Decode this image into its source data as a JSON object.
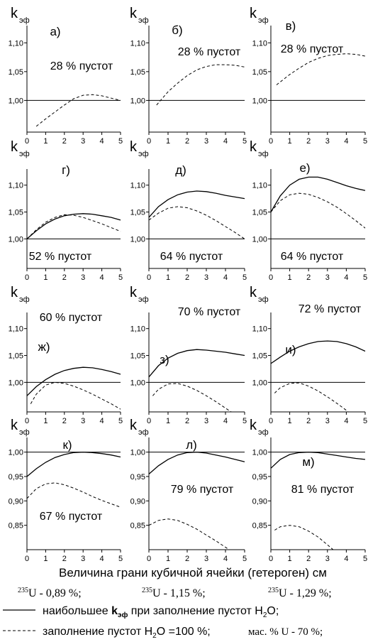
{
  "chart_data": [
    {
      "type": "line",
      "panel_label": "а)",
      "annotation": "28 % пустот",
      "y_label": "k",
      "y_label_sub": "эф",
      "xlim": [
        0,
        5
      ],
      "ylim": [
        0.945,
        1.13
      ],
      "xticks": [
        0,
        1,
        2,
        3,
        4,
        5
      ],
      "yticks": [
        {
          "value": 1.0,
          "label": "1,00"
        },
        {
          "value": 1.05,
          "label": "1,05"
        },
        {
          "value": 1.1,
          "label": "1,10"
        }
      ],
      "reference_line": 1,
      "series": [
        {
          "style": "dashed",
          "color": "#000000",
          "x": [
            0.5,
            1,
            1.5,
            2,
            2.5,
            3,
            3.5,
            4,
            4.5,
            5
          ],
          "values": [
            0.955,
            0.968,
            0.98,
            0.992,
            1.003,
            1.009,
            1.01,
            1.008,
            1.004,
            1.0
          ]
        }
      ]
    },
    {
      "type": "line",
      "panel_label": "б)",
      "annotation": "28 % пустот",
      "y_label": "k",
      "y_label_sub": "эф",
      "xlim": [
        0,
        5
      ],
      "ylim": [
        0.945,
        1.13
      ],
      "xticks": [
        0,
        1,
        2,
        3,
        4,
        5
      ],
      "yticks": [
        {
          "value": 1.0,
          "label": "1,00"
        },
        {
          "value": 1.05,
          "label": "1,05"
        },
        {
          "value": 1.1,
          "label": "1,10"
        }
      ],
      "reference_line": 1,
      "series": [
        {
          "style": "dashed",
          "color": "#000000",
          "x": [
            0.4,
            1,
            1.5,
            2,
            2.5,
            3,
            3.5,
            4,
            4.5,
            5
          ],
          "values": [
            0.992,
            1.015,
            1.03,
            1.043,
            1.053,
            1.059,
            1.062,
            1.062,
            1.061,
            1.058
          ]
        }
      ]
    },
    {
      "type": "line",
      "panel_label": "в)",
      "annotation": "28 % пустот",
      "y_label": "k",
      "y_label_sub": "эф",
      "xlim": [
        0,
        5
      ],
      "ylim": [
        0.945,
        1.13
      ],
      "xticks": [
        0,
        1,
        2,
        3,
        4,
        5
      ],
      "yticks": [
        {
          "value": 1.0,
          "label": "1,00"
        },
        {
          "value": 1.05,
          "label": "1,05"
        },
        {
          "value": 1.1,
          "label": "1,10"
        }
      ],
      "reference_line": 1,
      "series": [
        {
          "style": "dashed",
          "color": "#000000",
          "x": [
            0.3,
            1,
            1.5,
            2,
            2.5,
            3,
            3.5,
            4,
            4.5,
            5
          ],
          "values": [
            1.027,
            1.045,
            1.056,
            1.066,
            1.073,
            1.078,
            1.08,
            1.081,
            1.08,
            1.077
          ]
        }
      ]
    },
    {
      "type": "line",
      "panel_label": "г)",
      "annotation": "52 % пустот",
      "y_label": "k",
      "y_label_sub": "эф",
      "xlim": [
        0,
        5
      ],
      "ylim": [
        0.945,
        1.13
      ],
      "xticks": [
        0,
        1,
        2,
        3,
        4,
        5
      ],
      "yticks": [
        {
          "value": 1.0,
          "label": "1,00"
        },
        {
          "value": 1.05,
          "label": "1,05"
        },
        {
          "value": 1.1,
          "label": "1,10"
        }
      ],
      "reference_line": 1,
      "series": [
        {
          "style": "solid",
          "color": "#000000",
          "x": [
            0,
            0.5,
            1,
            1.5,
            2,
            2.5,
            3,
            3.5,
            4,
            4.5,
            5
          ],
          "values": [
            1.0,
            1.015,
            1.028,
            1.037,
            1.043,
            1.046,
            1.047,
            1.046,
            1.043,
            1.04,
            1.035
          ]
        },
        {
          "style": "dashed",
          "color": "#000000",
          "x": [
            0,
            0.5,
            1,
            1.5,
            2,
            2.5,
            3,
            3.5,
            4,
            4.5,
            5
          ],
          "values": [
            1.0,
            1.017,
            1.031,
            1.04,
            1.045,
            1.044,
            1.04,
            1.034,
            1.028,
            1.021,
            1.014
          ]
        }
      ]
    },
    {
      "type": "line",
      "panel_label": "д)",
      "annotation": "64 % пустот",
      "y_label": "k",
      "y_label_sub": "эф",
      "xlim": [
        0,
        5
      ],
      "ylim": [
        0.945,
        1.13
      ],
      "xticks": [
        0,
        1,
        2,
        3,
        4,
        5
      ],
      "yticks": [
        {
          "value": 1.0,
          "label": "1,00"
        },
        {
          "value": 1.05,
          "label": "1,05"
        },
        {
          "value": 1.1,
          "label": "1,10"
        }
      ],
      "reference_line": 1,
      "series": [
        {
          "style": "solid",
          "color": "#000000",
          "x": [
            0,
            0.5,
            1,
            1.5,
            2,
            2.5,
            3,
            3.5,
            4,
            4.5,
            5
          ],
          "values": [
            1.04,
            1.06,
            1.073,
            1.082,
            1.087,
            1.089,
            1.088,
            1.085,
            1.081,
            1.078,
            1.075
          ]
        },
        {
          "style": "dashed",
          "color": "#000000",
          "x": [
            0,
            0.5,
            1,
            1.5,
            2,
            2.5,
            3,
            3.5,
            4,
            4.5,
            5
          ],
          "values": [
            1.035,
            1.048,
            1.057,
            1.06,
            1.058,
            1.052,
            1.044,
            1.034,
            1.023,
            1.012,
            1.0
          ]
        }
      ]
    },
    {
      "type": "line",
      "panel_label": "е)",
      "annotation": "64 % пустот",
      "y_label": "k",
      "y_label_sub": "эф",
      "xlim": [
        0,
        5
      ],
      "ylim": [
        0.945,
        1.13
      ],
      "xticks": [
        0,
        1,
        2,
        3,
        4,
        5
      ],
      "yticks": [
        {
          "value": 1.0,
          "label": "1,00"
        },
        {
          "value": 1.05,
          "label": "1,05"
        },
        {
          "value": 1.1,
          "label": "1,10"
        }
      ],
      "reference_line": 1,
      "series": [
        {
          "style": "solid",
          "color": "#000000",
          "x": [
            0,
            0.5,
            1,
            1.5,
            2,
            2.5,
            3,
            3.5,
            4,
            4.5,
            5
          ],
          "values": [
            1.05,
            1.08,
            1.1,
            1.111,
            1.115,
            1.115,
            1.111,
            1.105,
            1.099,
            1.094,
            1.09
          ]
        },
        {
          "style": "dashed",
          "color": "#000000",
          "x": [
            0,
            0.5,
            1,
            1.5,
            2,
            2.5,
            3,
            3.5,
            4,
            4.5,
            5
          ],
          "values": [
            1.05,
            1.071,
            1.082,
            1.085,
            1.083,
            1.077,
            1.069,
            1.059,
            1.047,
            1.034,
            1.02
          ]
        }
      ]
    },
    {
      "type": "line",
      "panel_label": "ж)",
      "annotation": "60 % пустот",
      "y_label": "k",
      "y_label_sub": "эф",
      "xlim": [
        0,
        5
      ],
      "ylim": [
        0.945,
        1.13
      ],
      "xticks": [
        0,
        1,
        2,
        3,
        4,
        5
      ],
      "yticks": [
        {
          "value": 1.0,
          "label": "1,00"
        },
        {
          "value": 1.05,
          "label": "1,05"
        },
        {
          "value": 1.1,
          "label": "1,10"
        }
      ],
      "reference_line": 1,
      "series": [
        {
          "style": "solid",
          "color": "#000000",
          "x": [
            0,
            0.5,
            1,
            1.5,
            2,
            2.5,
            3,
            3.5,
            4,
            4.5,
            5
          ],
          "values": [
            0.975,
            0.992,
            1.005,
            1.015,
            1.022,
            1.026,
            1.028,
            1.027,
            1.024,
            1.02,
            1.015
          ]
        },
        {
          "style": "dashed",
          "color": "#000000",
          "x": [
            0.2,
            0.5,
            1,
            1.5,
            2,
            2.5,
            3,
            3.5,
            4,
            4.5,
            5
          ],
          "values": [
            0.96,
            0.978,
            0.995,
            1.0,
            0.998,
            0.993,
            0.986,
            0.978,
            0.969,
            0.96,
            0.95
          ]
        }
      ]
    },
    {
      "type": "line",
      "panel_label": "з)",
      "annotation": "70 % пустот",
      "y_label": "k",
      "y_label_sub": "эф",
      "xlim": [
        0,
        5
      ],
      "ylim": [
        0.945,
        1.13
      ],
      "xticks": [
        0,
        1,
        2,
        3,
        4,
        5
      ],
      "yticks": [
        {
          "value": 1.0,
          "label": "1,00"
        },
        {
          "value": 1.05,
          "label": "1,05"
        },
        {
          "value": 1.1,
          "label": "1,10"
        }
      ],
      "reference_line": 1,
      "series": [
        {
          "style": "solid",
          "color": "#000000",
          "x": [
            0,
            0.5,
            1,
            1.5,
            2,
            2.5,
            3,
            3.5,
            4,
            4.5,
            5
          ],
          "values": [
            1.01,
            1.031,
            1.045,
            1.054,
            1.059,
            1.061,
            1.06,
            1.058,
            1.056,
            1.053,
            1.05
          ]
        },
        {
          "style": "dashed",
          "color": "#000000",
          "x": [
            0.2,
            0.5,
            1,
            1.5,
            2,
            2.5,
            3,
            3.5,
            4,
            4.3
          ],
          "values": [
            0.975,
            0.987,
            0.997,
            0.998,
            0.993,
            0.985,
            0.975,
            0.964,
            0.952,
            0.945
          ]
        }
      ]
    },
    {
      "type": "line",
      "panel_label": "и)",
      "annotation": "72 % пустот",
      "y_label": "k",
      "y_label_sub": "эф",
      "xlim": [
        0,
        5
      ],
      "ylim": [
        0.945,
        1.13
      ],
      "xticks": [
        0,
        1,
        2,
        3,
        4,
        5
      ],
      "yticks": [
        {
          "value": 1.0,
          "label": "1,00"
        },
        {
          "value": 1.05,
          "label": "1,05"
        },
        {
          "value": 1.1,
          "label": "1,10"
        }
      ],
      "reference_line": 1,
      "series": [
        {
          "style": "solid",
          "color": "#000000",
          "x": [
            0,
            0.5,
            1,
            1.5,
            2,
            2.5,
            3,
            3.5,
            4,
            4.5,
            5
          ],
          "values": [
            1.035,
            1.047,
            1.058,
            1.066,
            1.072,
            1.076,
            1.077,
            1.076,
            1.072,
            1.066,
            1.058
          ]
        },
        {
          "style": "dashed",
          "color": "#000000",
          "x": [
            0.2,
            0.5,
            1,
            1.5,
            2,
            2.5,
            3,
            3.5,
            4,
            4.1
          ],
          "values": [
            0.98,
            0.99,
            0.998,
            0.999,
            0.993,
            0.984,
            0.973,
            0.961,
            0.948,
            0.945
          ]
        }
      ]
    },
    {
      "type": "line",
      "panel_label": "к)",
      "annotation": "67 % пустот",
      "y_label": "k",
      "y_label_sub": "эф",
      "xlim": [
        0,
        5
      ],
      "ylim": [
        0.8,
        1.03
      ],
      "xticks": [
        0,
        1,
        2,
        3,
        4,
        5
      ],
      "yticks": [
        {
          "value": 0.85,
          "label": "0,85"
        },
        {
          "value": 0.9,
          "label": "0,90"
        },
        {
          "value": 0.95,
          "label": "0,95"
        },
        {
          "value": 1.0,
          "label": "1,00"
        }
      ],
      "reference_line": 1,
      "series": [
        {
          "style": "solid",
          "color": "#000000",
          "x": [
            0,
            0.5,
            1,
            1.5,
            2,
            2.5,
            3,
            3.5,
            4,
            4.5,
            5
          ],
          "values": [
            0.95,
            0.966,
            0.979,
            0.989,
            0.995,
            0.999,
            1.0,
            0.999,
            0.997,
            0.994,
            0.99
          ]
        },
        {
          "style": "dashed",
          "color": "#000000",
          "x": [
            0,
            0.5,
            1,
            1.5,
            2,
            2.5,
            3,
            3.5,
            4,
            4.5,
            5
          ],
          "values": [
            0.905,
            0.925,
            0.935,
            0.937,
            0.933,
            0.926,
            0.918,
            0.909,
            0.901,
            0.894,
            0.887
          ]
        }
      ]
    },
    {
      "type": "line",
      "panel_label": "л)",
      "annotation": "79 % пустот",
      "y_label": "k",
      "y_label_sub": "эф",
      "xlim": [
        0,
        5
      ],
      "ylim": [
        0.8,
        1.03
      ],
      "xticks": [
        0,
        1,
        2,
        3,
        4,
        5
      ],
      "yticks": [
        {
          "value": 0.85,
          "label": "0,85"
        },
        {
          "value": 0.9,
          "label": "0,90"
        },
        {
          "value": 0.95,
          "label": "0,95"
        },
        {
          "value": 1.0,
          "label": "1,00"
        }
      ],
      "reference_line": 1,
      "series": [
        {
          "style": "solid",
          "color": "#000000",
          "x": [
            0,
            0.5,
            1,
            1.5,
            2,
            2.5,
            3,
            3.5,
            4,
            4.5,
            5
          ],
          "values": [
            0.955,
            0.972,
            0.985,
            0.994,
            0.999,
            1.0,
            0.998,
            0.994,
            0.99,
            0.985,
            0.98
          ]
        },
        {
          "style": "dashed",
          "color": "#000000",
          "x": [
            0,
            0.5,
            1,
            1.5,
            2,
            2.5,
            3,
            3.5,
            4,
            4.2
          ],
          "values": [
            0.85,
            0.86,
            0.863,
            0.86,
            0.852,
            0.842,
            0.83,
            0.818,
            0.805,
            0.8
          ]
        }
      ]
    },
    {
      "type": "line",
      "panel_label": "м)",
      "annotation": "81 % пустот",
      "y_label": "k",
      "y_label_sub": "эф",
      "xlim": [
        0,
        5
      ],
      "ylim": [
        0.8,
        1.03
      ],
      "xticks": [
        0,
        1,
        2,
        3,
        4,
        5
      ],
      "yticks": [
        {
          "value": 0.85,
          "label": "0,85"
        },
        {
          "value": 0.9,
          "label": "0,90"
        },
        {
          "value": 0.95,
          "label": "0,95"
        },
        {
          "value": 1.0,
          "label": "1,00"
        }
      ],
      "reference_line": 1,
      "series": [
        {
          "style": "solid",
          "color": "#000000",
          "x": [
            0,
            0.5,
            1,
            1.5,
            2,
            2.5,
            3,
            3.5,
            4,
            4.5,
            5
          ],
          "values": [
            0.967,
            0.985,
            0.995,
            0.999,
            1.0,
            0.999,
            0.996,
            0.993,
            0.99,
            0.987,
            0.985
          ]
        },
        {
          "style": "dashed",
          "color": "#000000",
          "x": [
            0.2,
            0.5,
            1,
            1.5,
            2,
            2.5,
            3,
            3.3
          ],
          "values": [
            0.84,
            0.847,
            0.85,
            0.847,
            0.838,
            0.826,
            0.81,
            0.8
          ]
        }
      ]
    }
  ],
  "x_label": "Величина грани кубичной ячейки (гетероген) см",
  "isotopes": [
    {
      "mass": "235",
      "text": "U - 0,89 %;"
    },
    {
      "mass": "235",
      "text": "U - 1,15 %;"
    },
    {
      "mass": "235",
      "text": "U - 1,29 %;"
    }
  ],
  "legend": [
    {
      "style": "solid",
      "parts": [
        "наибольшее ",
        "k",
        "эф",
        " при заполнение пустот H",
        "2",
        "O;"
      ]
    },
    {
      "style": "dashed",
      "parts": [
        "заполнение пустот H",
        "2",
        "O =100 %;",
        "мас. % U - 70 %;"
      ]
    }
  ]
}
